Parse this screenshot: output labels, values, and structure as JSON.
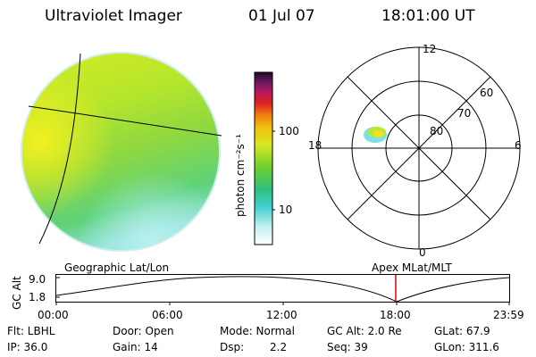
{
  "header": {
    "title": "Ultraviolet Imager",
    "date": "01 Jul 07",
    "time": "18:01:00 UT"
  },
  "colorbar": {
    "unit_label": "photon cm⁻²s⁻¹",
    "tick_labels": [
      "100",
      "10"
    ]
  },
  "polar_plot": {
    "mlt_labels": {
      "top": "12",
      "left": "18",
      "right": "6",
      "bottom": "0"
    },
    "lat_labels": [
      "60",
      "70",
      "80"
    ]
  },
  "strip": {
    "left_title": "Geographic Lat/Lon",
    "right_title": "Apex  MLat/MLT",
    "y_axis_label": "GC Alt",
    "y_ticks": [
      "9.0",
      "1.8"
    ],
    "x_ticks": [
      "00:00",
      "06:00",
      "12:00",
      "18:00",
      "23:59"
    ],
    "marker_color": "#dd0000"
  },
  "info": {
    "flt": "Flt: LBHL",
    "ip": "IP: 36.0",
    "door": "Door: Open",
    "gain": "Gain: 14",
    "mode": "Mode: Normal",
    "dsp_label": "Dsp:",
    "dsp_value": "2.2",
    "gc_alt": "GC Alt: 2.0 Re",
    "seq": "Seq: 39",
    "glat": "GLat:  67.9",
    "glon": "GLon: 311.6"
  }
}
